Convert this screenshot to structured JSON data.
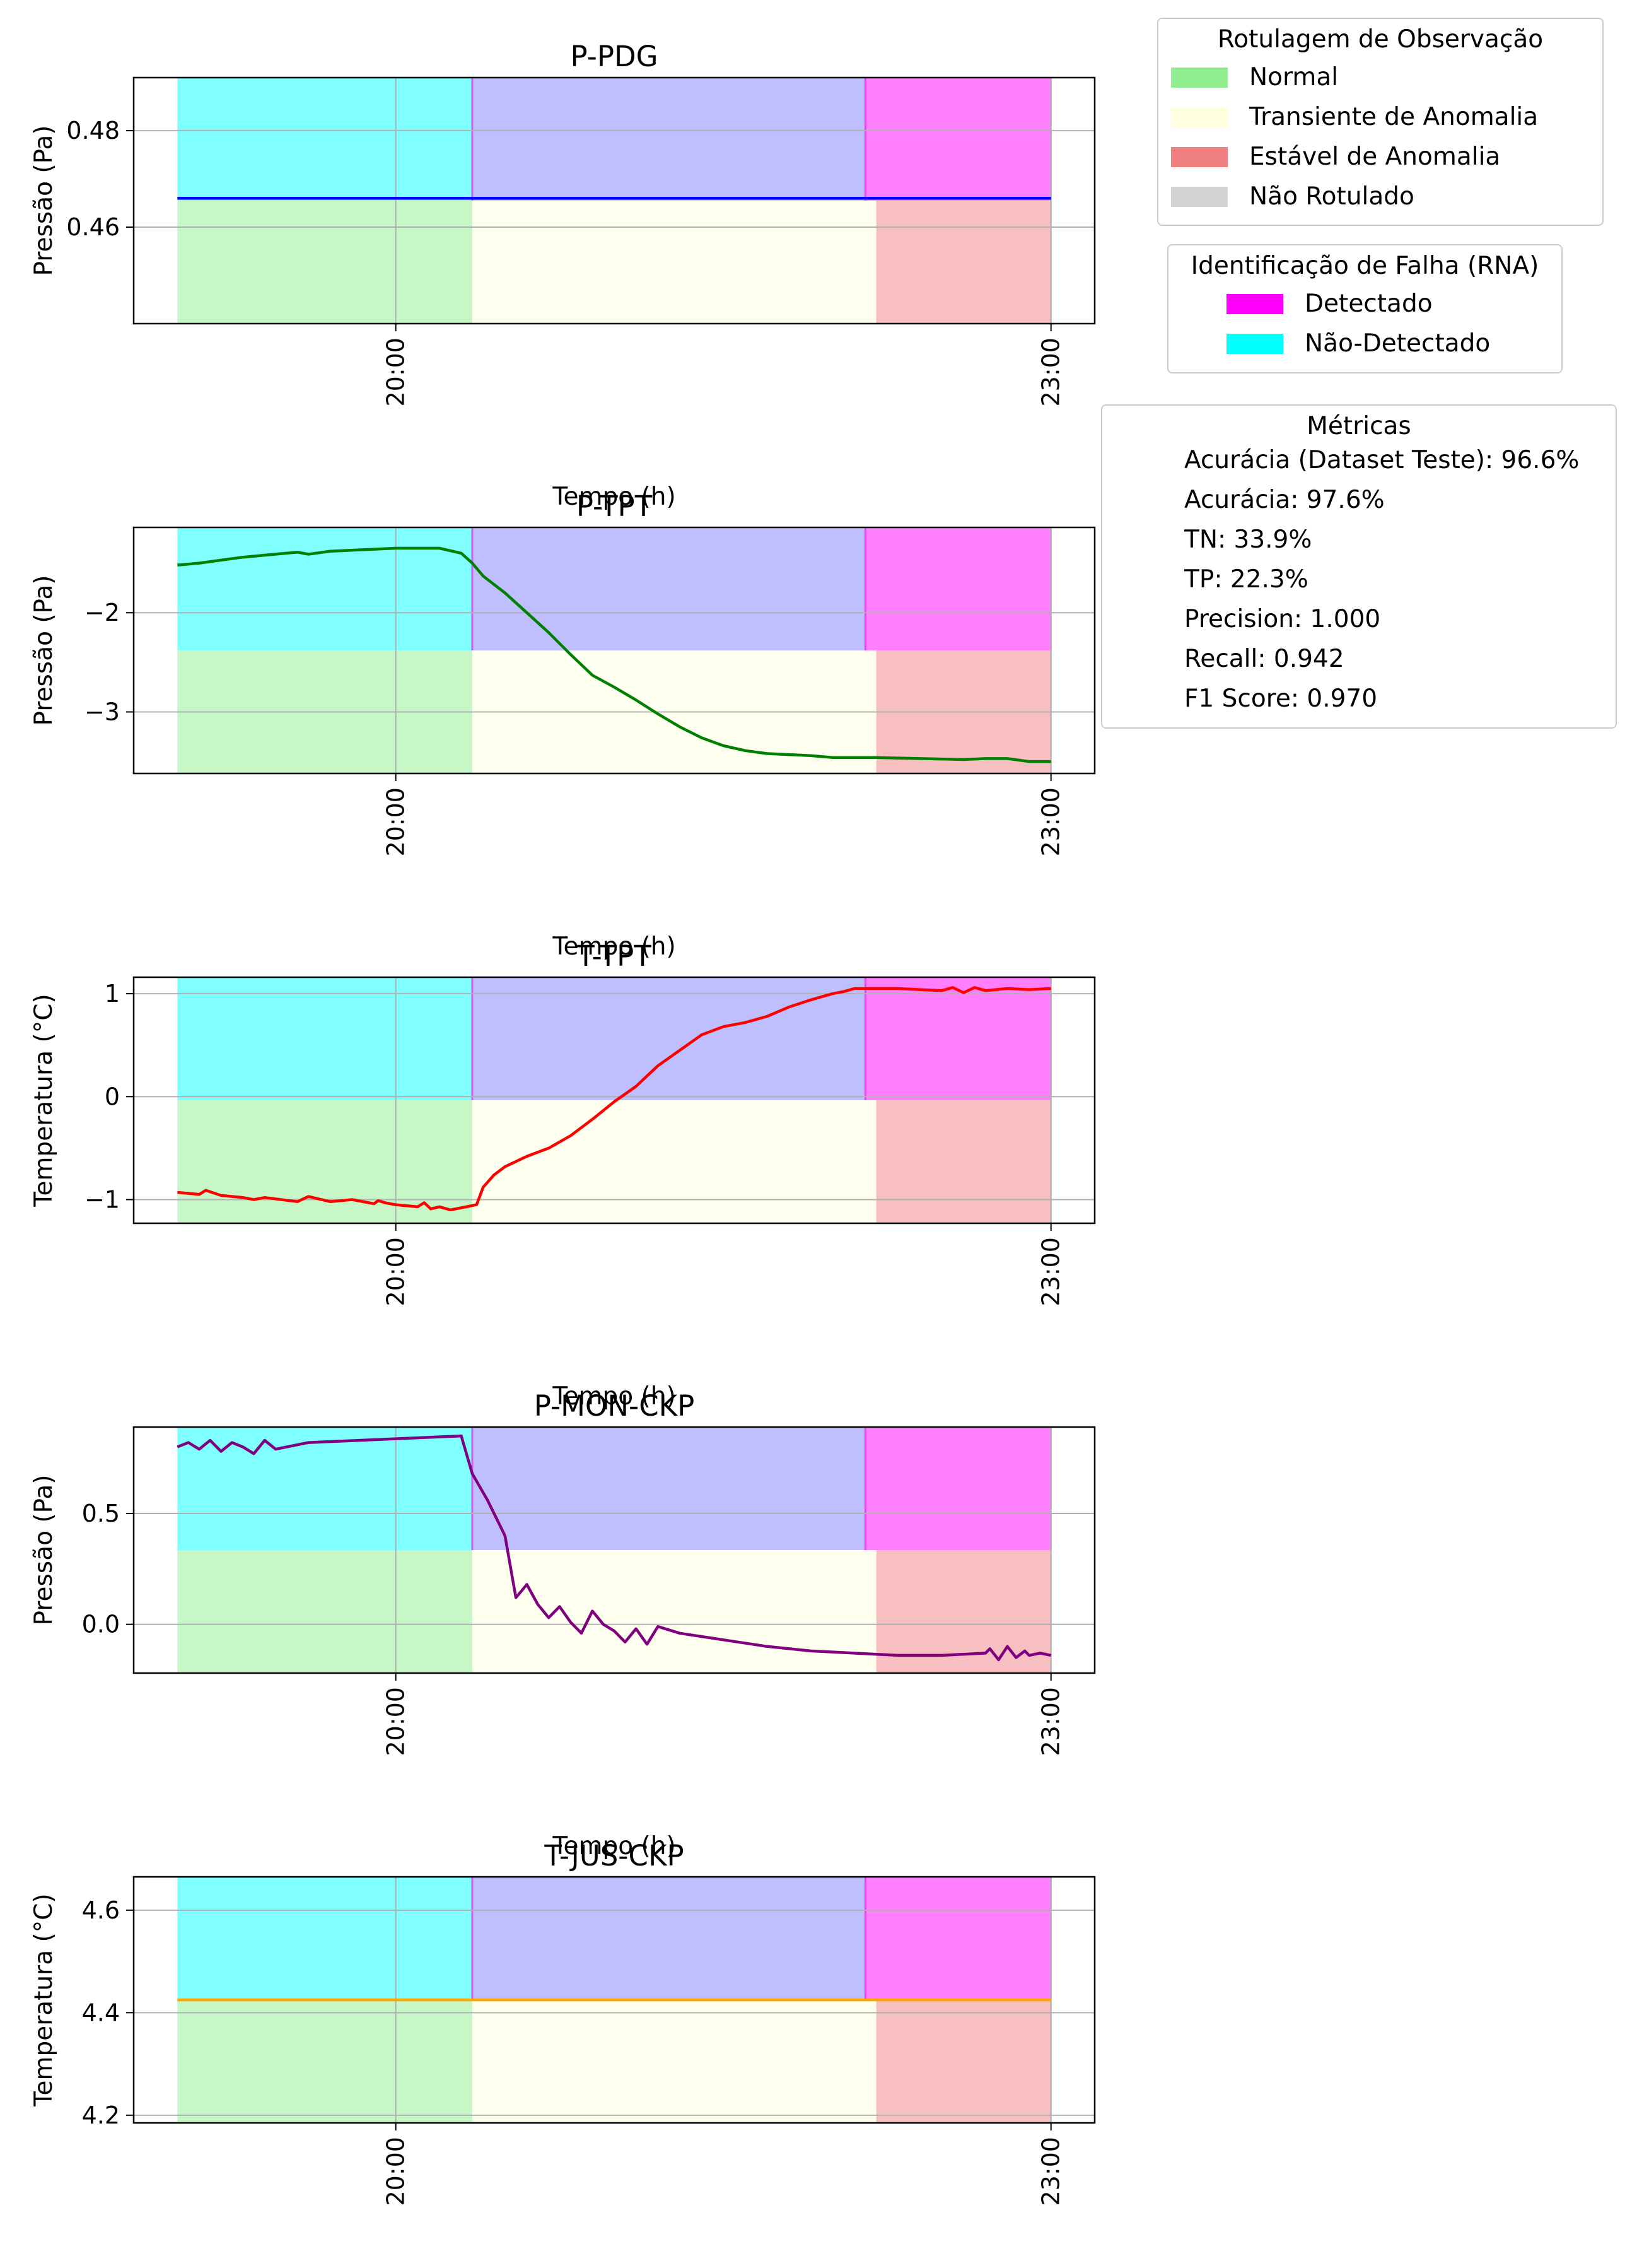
{
  "colors": {
    "normal": "#90ee90",
    "transient": "#ffffe0",
    "stable": "#f08080",
    "unlabeled": "#d3d3d3",
    "detected": "#ff00ff",
    "not_detected": "#00ffff",
    "overlap_band": "#bfbfff"
  },
  "legend_observation": {
    "title": "Rotulagem de Observação",
    "items": [
      {
        "label": "Normal",
        "color": "#90ee90"
      },
      {
        "label": "Transiente de Anomalia",
        "color": "#ffffe0"
      },
      {
        "label": "Estável de Anomalia",
        "color": "#f08080"
      },
      {
        "label": "Não Rotulado",
        "color": "#d3d3d3"
      }
    ]
  },
  "legend_failure": {
    "title": "Identificação de Falha (RNA)",
    "items": [
      {
        "label": "Detectado",
        "color": "#ff00ff"
      },
      {
        "label": "Não-Detectado",
        "color": "#00ffff"
      }
    ]
  },
  "metrics": {
    "title": "Métricas",
    "items": [
      "Acurácia (Dataset Teste): 96.6%",
      "Acurácia: 97.6%",
      "TN: 33.9%",
      "TP: 22.3%",
      "Precision: 1.000",
      "Recall: 0.942",
      "F1 Score: 0.970"
    ]
  },
  "chart_data": [
    {
      "type": "line",
      "title": "P-PDG",
      "xlabel": "Tempo (h)",
      "ylabel": "Pressão (Pa)",
      "x_ticks": [
        {
          "value": 20.0,
          "label": "20:00"
        },
        {
          "value": 23.0,
          "label": "23:00"
        }
      ],
      "xlim": [
        18.8,
        23.2
      ],
      "ylim": [
        0.44,
        0.491
      ],
      "y_ticks": [
        {
          "value": 0.46,
          "label": "0.46"
        },
        {
          "value": 0.48,
          "label": "0.48"
        }
      ],
      "grid": true,
      "color": "#0000ff",
      "x": [
        19.0,
        23.0
      ],
      "y": [
        0.466,
        0.466
      ]
    },
    {
      "type": "line",
      "title": "P-TPT",
      "xlabel": "Tempo (h)",
      "ylabel": "Pressão (Pa)",
      "x_ticks": [
        {
          "value": 20.0,
          "label": "20:00"
        },
        {
          "value": 23.0,
          "label": "23:00"
        }
      ],
      "xlim": [
        18.8,
        23.2
      ],
      "ylim": [
        -3.62,
        -1.14
      ],
      "y_ticks": [
        {
          "value": -3,
          "label": "−3"
        },
        {
          "value": -2,
          "label": "−2"
        }
      ],
      "grid": true,
      "color": "#008000",
      "x": [
        19.0,
        19.1,
        19.2,
        19.3,
        19.4,
        19.55,
        19.6,
        19.7,
        20.0,
        20.2,
        20.3,
        20.35,
        20.4,
        20.5,
        20.6,
        20.7,
        20.8,
        20.9,
        21.0,
        21.1,
        21.2,
        21.3,
        21.4,
        21.5,
        21.6,
        21.7,
        21.8,
        21.9,
        22.0,
        22.2,
        22.4,
        22.6,
        22.7,
        22.8,
        22.9,
        23.0
      ],
      "y": [
        -1.52,
        -1.5,
        -1.47,
        -1.44,
        -1.42,
        -1.39,
        -1.41,
        -1.38,
        -1.35,
        -1.35,
        -1.4,
        -1.5,
        -1.63,
        -1.8,
        -2.0,
        -2.2,
        -2.42,
        -2.63,
        -2.75,
        -2.88,
        -3.02,
        -3.15,
        -3.26,
        -3.34,
        -3.39,
        -3.42,
        -3.43,
        -3.44,
        -3.46,
        -3.46,
        -3.47,
        -3.48,
        -3.47,
        -3.47,
        -3.5,
        -3.5
      ]
    },
    {
      "type": "line",
      "title": "T-TPT",
      "xlabel": "Tempo (h)",
      "ylabel": "Temperatura (°C)",
      "x_ticks": [
        {
          "value": 20.0,
          "label": "20:00"
        },
        {
          "value": 23.0,
          "label": "23:00"
        }
      ],
      "xlim": [
        18.8,
        23.2
      ],
      "ylim": [
        -1.23,
        1.16
      ],
      "y_ticks": [
        {
          "value": -1,
          "label": "−1"
        },
        {
          "value": 0,
          "label": "0"
        },
        {
          "value": 1,
          "label": "1"
        }
      ],
      "grid": true,
      "color": "#ff0000",
      "x": [
        19.0,
        19.1,
        19.13,
        19.2,
        19.3,
        19.35,
        19.4,
        19.55,
        19.6,
        19.7,
        19.8,
        19.9,
        19.92,
        19.95,
        20.0,
        20.1,
        20.13,
        20.16,
        20.2,
        20.25,
        20.3,
        20.37,
        20.4,
        20.45,
        20.5,
        20.6,
        20.7,
        20.8,
        20.9,
        21.0,
        21.1,
        21.2,
        21.3,
        21.4,
        21.5,
        21.6,
        21.7,
        21.8,
        21.9,
        22.0,
        22.05,
        22.1,
        22.2,
        22.3,
        22.4,
        22.5,
        22.55,
        22.6,
        22.65,
        22.7,
        22.8,
        22.9,
        23.0
      ],
      "y": [
        -0.93,
        -0.95,
        -0.91,
        -0.96,
        -0.98,
        -1.0,
        -0.98,
        -1.02,
        -0.97,
        -1.02,
        -1.0,
        -1.04,
        -1.01,
        -1.03,
        -1.05,
        -1.07,
        -1.03,
        -1.09,
        -1.07,
        -1.1,
        -1.08,
        -1.05,
        -0.88,
        -0.76,
        -0.68,
        -0.58,
        -0.5,
        -0.38,
        -0.22,
        -0.05,
        0.1,
        0.3,
        0.45,
        0.6,
        0.68,
        0.72,
        0.78,
        0.87,
        0.94,
        1.0,
        1.02,
        1.05,
        1.05,
        1.05,
        1.04,
        1.03,
        1.06,
        1.01,
        1.06,
        1.03,
        1.05,
        1.04,
        1.05
      ]
    },
    {
      "type": "line",
      "title": "P-MON-CKP",
      "xlabel": "Tempo (h)",
      "ylabel": "Pressão (Pa)",
      "x_ticks": [
        {
          "value": 20.0,
          "label": "20:00"
        },
        {
          "value": 23.0,
          "label": "23:00"
        }
      ],
      "xlim": [
        18.8,
        23.2
      ],
      "ylim": [
        -0.22,
        0.89
      ],
      "y_ticks": [
        {
          "value": 0.0,
          "label": "0.0"
        },
        {
          "value": 0.5,
          "label": "0.5"
        }
      ],
      "grid": true,
      "color": "#800080",
      "x": [
        19.0,
        19.05,
        19.1,
        19.15,
        19.2,
        19.25,
        19.3,
        19.35,
        19.4,
        19.45,
        19.5,
        19.55,
        19.6,
        20.3,
        20.35,
        20.42,
        20.5,
        20.55,
        20.6,
        20.65,
        20.7,
        20.75,
        20.8,
        20.85,
        20.9,
        20.95,
        21.0,
        21.05,
        21.1,
        21.15,
        21.2,
        21.3,
        21.5,
        21.7,
        21.9,
        22.1,
        22.3,
        22.5,
        22.7,
        22.72,
        22.76,
        22.8,
        22.84,
        22.88,
        22.9,
        22.95,
        23.0
      ],
      "y": [
        0.8,
        0.82,
        0.79,
        0.83,
        0.78,
        0.82,
        0.8,
        0.77,
        0.83,
        0.79,
        0.8,
        0.81,
        0.82,
        0.85,
        0.68,
        0.56,
        0.4,
        0.12,
        0.18,
        0.09,
        0.03,
        0.08,
        0.01,
        -0.04,
        0.06,
        0.0,
        -0.03,
        -0.08,
        -0.02,
        -0.09,
        -0.01,
        -0.04,
        -0.07,
        -0.1,
        -0.12,
        -0.13,
        -0.14,
        -0.14,
        -0.13,
        -0.11,
        -0.16,
        -0.1,
        -0.15,
        -0.12,
        -0.14,
        -0.13,
        -0.14
      ]
    },
    {
      "type": "line",
      "title": "T-JUS-CKP",
      "xlabel": "Tempo (h)",
      "ylabel": "Temperatura (°C)",
      "x_ticks": [
        {
          "value": 20.0,
          "label": "20:00"
        },
        {
          "value": 23.0,
          "label": "23:00"
        }
      ],
      "xlim": [
        18.8,
        23.2
      ],
      "ylim": [
        4.185,
        4.665
      ],
      "y_ticks": [
        {
          "value": 4.2,
          "label": "4.2"
        },
        {
          "value": 4.4,
          "label": "4.4"
        },
        {
          "value": 4.6,
          "label": "4.6"
        }
      ],
      "grid": true,
      "color": "#ffa500",
      "x": [
        19.0,
        23.0
      ],
      "y": [
        4.425,
        4.425
      ]
    }
  ],
  "observation_spans": [
    {
      "label": "Normal",
      "start": 19.0,
      "end": 20.35
    },
    {
      "label": "Transiente de Anomalia",
      "start": 20.35,
      "end": 22.2
    },
    {
      "label": "Estável de Anomalia",
      "start": 22.2,
      "end": 23.0
    }
  ],
  "detection_spans": [
    {
      "label": "Não-Detectado",
      "start": 19.0,
      "end": 20.4
    },
    {
      "label": "Não-Detectado / Normal overlap",
      "start": 20.35,
      "end": 22.15
    },
    {
      "label": "Detectado",
      "start": 22.15,
      "end": 23.0
    }
  ]
}
